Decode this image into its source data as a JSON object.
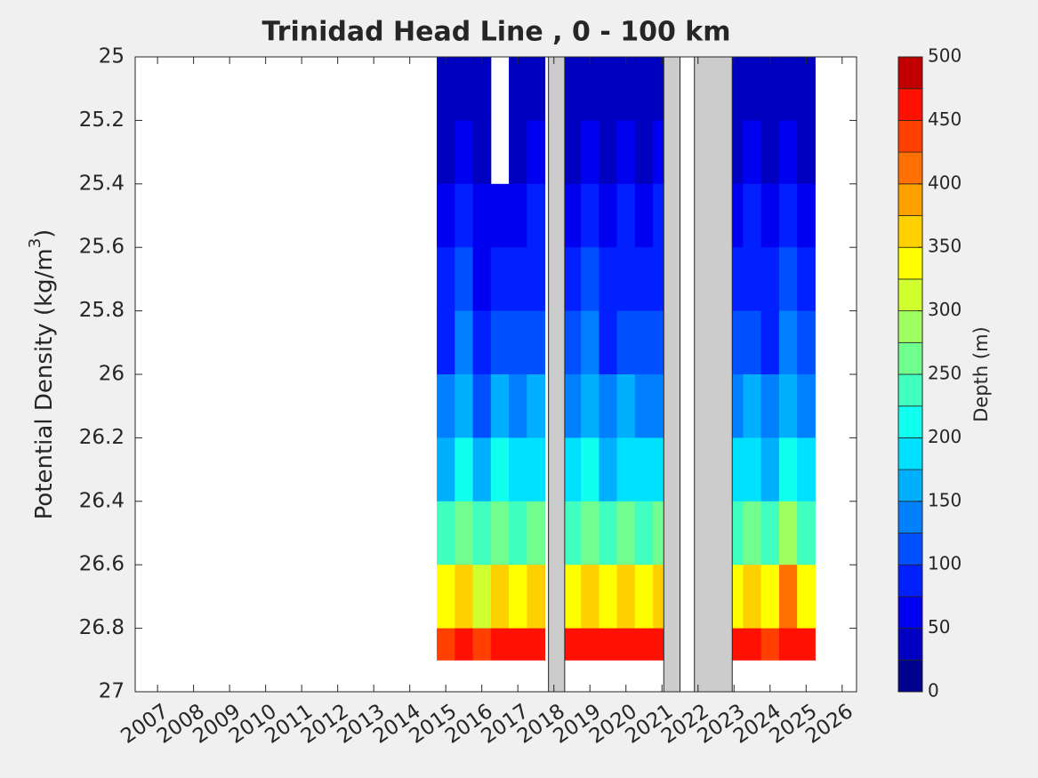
{
  "chart_data": {
    "type": "contour",
    "title": "Trinidad Head Line , 0 - 100 km",
    "ylabel_parts": [
      "Potential Density (kg/m",
      "3",
      ")"
    ],
    "colorbar_label": "Depth (m)",
    "xlim": [
      2006.38,
      2026.4
    ],
    "xticks": [
      2007,
      2008,
      2009,
      2010,
      2011,
      2012,
      2013,
      2014,
      2015,
      2016,
      2017,
      2018,
      2019,
      2020,
      2021,
      2022,
      2023,
      2024,
      2025,
      2026
    ],
    "ylim": [
      25,
      27
    ],
    "y_reversed": true,
    "yticks": [
      25,
      25.2,
      25.4,
      25.6,
      25.8,
      26,
      26.2,
      26.4,
      26.6,
      26.8,
      27
    ],
    "clim": [
      0,
      500
    ],
    "cticks": [
      0,
      50,
      100,
      150,
      200,
      250,
      300,
      350,
      400,
      450,
      500
    ],
    "level_colors": [
      "#00008f",
      "#0000c0",
      "#0000f0",
      "#0020ff",
      "#0050ff",
      "#0080ff",
      "#00b0ff",
      "#00e0ff",
      "#10ffef",
      "#40ffbf",
      "#70ff8f",
      "#a0ff60",
      "#d0ff30",
      "#ffff00",
      "#ffd000",
      "#ffa000",
      "#ff7000",
      "#ff4000",
      "#ff1000",
      "#c00000"
    ],
    "gap_color": "#cccccc",
    "x": [
      2015,
      2015.5,
      2016,
      2016.5,
      2017,
      2017.5,
      2018,
      2018.5,
      2019,
      2019.5,
      2020,
      2020.5,
      2021,
      2021.5,
      2022,
      2022.5,
      2023,
      2023.5,
      2024,
      2024.5,
      2025
    ],
    "y_edges": [
      25,
      25.2,
      25.4,
      25.6,
      25.8,
      26,
      26.2,
      26.4,
      26.6,
      26.8,
      26.9
    ],
    "z": [
      [
        30,
        45,
        60,
        75,
        95,
        125,
        170,
        235,
        330,
        445
      ],
      [
        40,
        60,
        80,
        100,
        125,
        160,
        205,
        265,
        360,
        465
      ],
      [
        25,
        40,
        55,
        70,
        90,
        120,
        160,
        225,
        320,
        440
      ],
      [
        null,
        null,
        70,
        95,
        120,
        155,
        200,
        260,
        365,
        470
      ],
      [
        30,
        45,
        60,
        80,
        100,
        130,
        175,
        240,
        340,
        450
      ],
      [
        35,
        55,
        75,
        95,
        120,
        150,
        195,
        255,
        355,
        460
      ],
      null,
      [
        30,
        45,
        65,
        85,
        105,
        135,
        180,
        245,
        345,
        455
      ],
      [
        40,
        60,
        80,
        100,
        125,
        160,
        205,
        265,
        370,
        470
      ],
      [
        25,
        40,
        55,
        75,
        95,
        125,
        170,
        235,
        335,
        450
      ],
      [
        35,
        55,
        75,
        95,
        120,
        150,
        195,
        255,
        355,
        460
      ],
      [
        30,
        45,
        60,
        80,
        100,
        130,
        175,
        240,
        340,
        450
      ],
      [
        40,
        55,
        75,
        95,
        115,
        145,
        190,
        250,
        350,
        460
      ],
      null,
      null,
      null,
      [
        30,
        45,
        65,
        85,
        105,
        135,
        180,
        245,
        345,
        455
      ],
      [
        35,
        55,
        75,
        95,
        120,
        150,
        195,
        255,
        355,
        460
      ],
      [
        25,
        40,
        55,
        75,
        95,
        125,
        170,
        235,
        335,
        445
      ],
      [
        40,
        60,
        80,
        100,
        125,
        160,
        210,
        290,
        400,
        470
      ],
      [
        30,
        45,
        65,
        85,
        105,
        135,
        180,
        245,
        345,
        455
      ]
    ],
    "gaps": [
      [
        2017.85,
        2018.3
      ],
      [
        2021.05,
        2021.5
      ],
      [
        2021.9,
        2022.95
      ]
    ]
  }
}
